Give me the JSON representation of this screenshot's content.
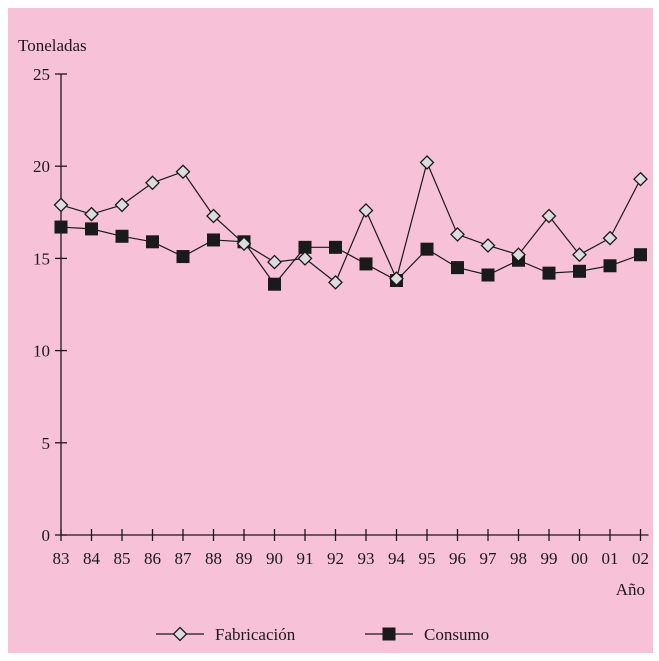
{
  "chart_data": {
    "type": "line",
    "ylabel": "Toneladas",
    "xlabel": "Año",
    "ylim": [
      0,
      25
    ],
    "yticks": [
      "0",
      "5",
      "10",
      "15",
      "20",
      "25"
    ],
    "categories": [
      "83",
      "84",
      "85",
      "86",
      "87",
      "88",
      "89",
      "90",
      "91",
      "92",
      "93",
      "94",
      "95",
      "96",
      "97",
      "98",
      "99",
      "00",
      "01",
      "02"
    ],
    "series": [
      {
        "name": "Fabricación",
        "marker": "diamond-open",
        "color": "#1a1a1a",
        "values": [
          17.9,
          17.4,
          17.9,
          19.1,
          19.7,
          17.3,
          15.8,
          14.8,
          15.0,
          13.7,
          17.6,
          13.9,
          20.2,
          16.3,
          15.7,
          15.2,
          17.3,
          15.2,
          16.1,
          19.3
        ]
      },
      {
        "name": "Consumo",
        "marker": "square-filled",
        "color": "#1a1a1a",
        "values": [
          16.7,
          16.6,
          16.2,
          15.9,
          15.1,
          16.0,
          15.9,
          13.6,
          15.6,
          15.6,
          14.7,
          13.8,
          15.5,
          14.5,
          14.1,
          14.9,
          14.2,
          14.3,
          14.6,
          15.2
        ]
      }
    ],
    "grid": false,
    "legend": "bottom"
  }
}
